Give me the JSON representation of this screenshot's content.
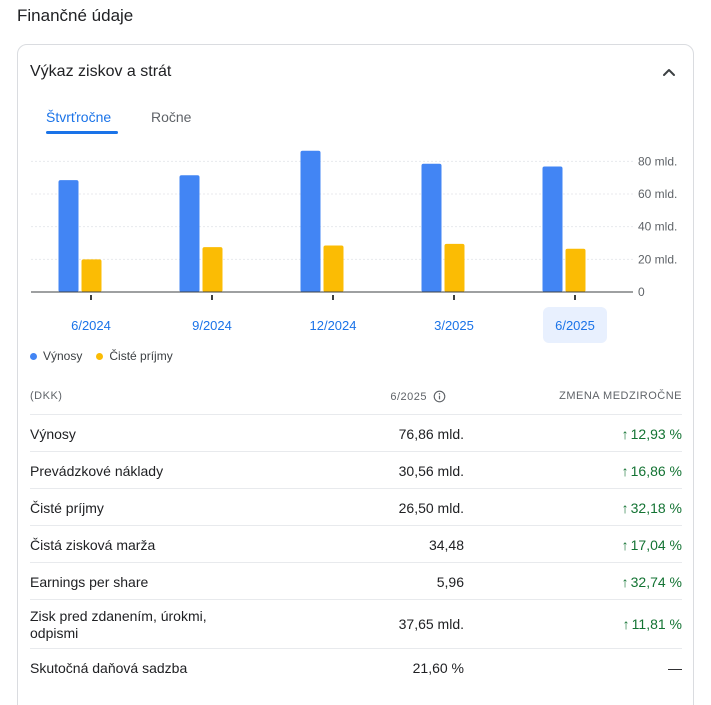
{
  "page": {
    "section_title": "Finančné údaje"
  },
  "card": {
    "title": "Výkaz ziskov a strát",
    "collapse_icon": "chevron-up-icon"
  },
  "tabs": {
    "active": "Štvrťročne",
    "inactive": "Ročne"
  },
  "chart_data": {
    "type": "bar",
    "categories": [
      "6/2024",
      "9/2024",
      "12/2024",
      "3/2025",
      "6/2025"
    ],
    "series": [
      {
        "name": "Výnosy",
        "color": "#4285f4",
        "values": [
          68.5,
          71.5,
          86.5,
          78.5,
          76.86
        ]
      },
      {
        "name": "Čisté príjmy",
        "color": "#fbbc04",
        "values": [
          20,
          27.5,
          28.5,
          29.5,
          26.5
        ]
      }
    ],
    "ylim": [
      0,
      90
    ],
    "yticks": [
      0,
      20,
      40,
      60,
      80
    ],
    "ytick_labels": [
      "0",
      "20 mld.",
      "40 mld.",
      "60 mld.",
      "80 mld."
    ],
    "grid": true,
    "selected_category": "6/2025"
  },
  "legend": {
    "revenue": "Výnosy",
    "net_income": "Čisté príjmy"
  },
  "table": {
    "header": {
      "currency": "(DKK)",
      "period": "6/2025",
      "change": "ZMENA MEDZIROČNE",
      "info_icon": "info-icon"
    },
    "rows": [
      {
        "label": "Výnosy",
        "value": "76,86 mld.",
        "change": "12,93 %",
        "trend": "up"
      },
      {
        "label": "Prevádzkové náklady",
        "value": "30,56 mld.",
        "change": "16,86 %",
        "trend": "up"
      },
      {
        "label": "Čisté príjmy",
        "value": "26,50 mld.",
        "change": "32,18 %",
        "trend": "up"
      },
      {
        "label": "Čistá zisková marža",
        "value": "34,48",
        "change": "17,04 %",
        "trend": "up"
      },
      {
        "label": "Earnings per share",
        "value": "5,96",
        "change": "32,74 %",
        "trend": "up"
      },
      {
        "label_line1": "Zisk pred zdanením, úrokmi,",
        "label_line2": "odpismi",
        "value": "37,65 mld.",
        "change": "11,81 %",
        "trend": "up"
      },
      {
        "label": "Skutočná daňová sadzba",
        "value": "21,60 %",
        "change": "—",
        "trend": "none"
      }
    ]
  },
  "colors": {
    "accent": "#1a73e8",
    "positive": "#137333",
    "revenue": "#4285f4",
    "net_income": "#fbbc04"
  }
}
